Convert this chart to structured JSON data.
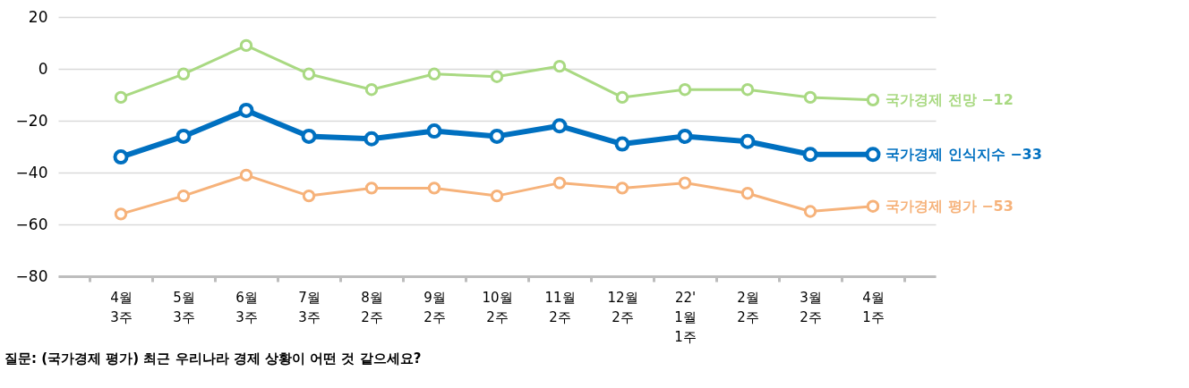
{
  "chart_data": {
    "type": "line",
    "categories": [
      "4월\n3주",
      "5월\n3주",
      "6월\n3주",
      "7월\n3주",
      "8월\n2주",
      "9월\n2주",
      "10월\n2주",
      "11월\n2주",
      "12월\n2주",
      "22'\n1월\n1주",
      "2월\n2주",
      "3월\n2주",
      "4월\n1주"
    ],
    "series": [
      {
        "name": "국가경제 전망",
        "color": "#a9d982",
        "values": [
          -11,
          -2,
          9,
          -2,
          -8,
          -2,
          -3,
          1,
          -11,
          -8,
          -8,
          -11,
          -12
        ],
        "value_labels": [
          null,
          null,
          null,
          null,
          null,
          null,
          null,
          null,
          null,
          null,
          null,
          null,
          "−12"
        ]
      },
      {
        "name": "국가경제 인식지수",
        "color": "#0070c0",
        "values": [
          -34,
          -26,
          -16,
          -26,
          -27,
          -24,
          -26,
          -22,
          -29,
          -26,
          -28,
          -33,
          -33
        ],
        "value_labels": [
          null,
          null,
          null,
          null,
          null,
          null,
          null,
          null,
          null,
          null,
          null,
          null,
          "−33"
        ]
      },
      {
        "name": "국가경제 평가",
        "color": "#f6b27a",
        "values": [
          -56,
          -49,
          -41,
          -49,
          -46,
          -46,
          -49,
          -44,
          -46,
          -44,
          -48,
          -55,
          -53
        ],
        "value_labels": [
          null,
          null,
          null,
          null,
          null,
          null,
          null,
          null,
          null,
          null,
          null,
          null,
          "−53"
        ]
      }
    ],
    "ylim": [
      -80,
      20
    ],
    "yticks": [
      -80,
      -60,
      -40,
      -20,
      0,
      20
    ],
    "grid": "y",
    "marker": "circle",
    "line_style": "solid",
    "legend": false,
    "annotations": [
      "질문: (국가경제 평가) 최근 우리나라 경제 상황이 어떤 것 같으세요?"
    ]
  }
}
